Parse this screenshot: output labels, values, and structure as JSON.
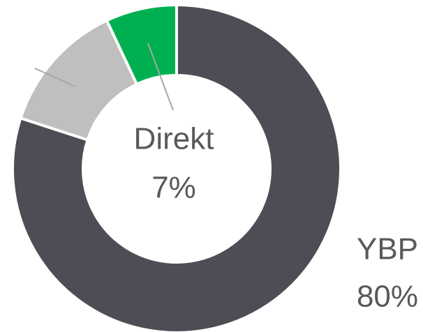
{
  "chart_data": {
    "type": "donut",
    "categories": [
      "YBP",
      null,
      "Direkt"
    ],
    "values": [
      80,
      13,
      7
    ],
    "value_labels": [
      "80%",
      null,
      "7%"
    ],
    "colors": [
      "#4d4e55",
      "#bfbfbf",
      "#00b050"
    ]
  }
}
